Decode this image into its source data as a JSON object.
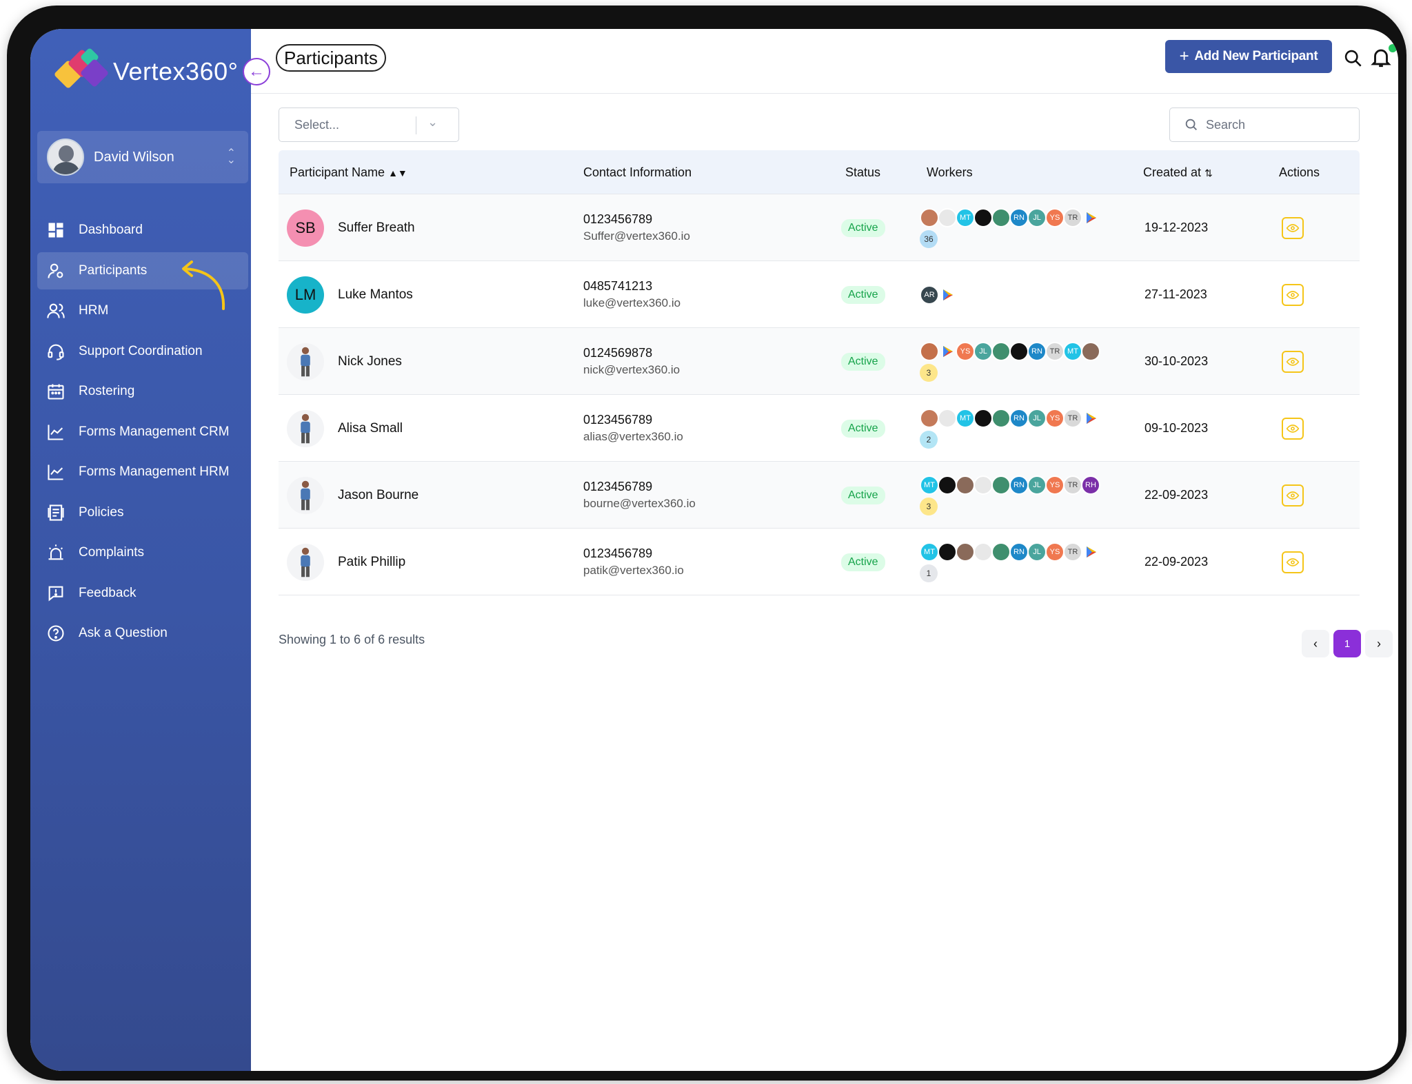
{
  "brand": {
    "name": "Vertex360°"
  },
  "user": {
    "name": "David Wilson"
  },
  "nav": [
    {
      "label": "Dashboard",
      "icon": "dashboard-icon"
    },
    {
      "label": "Participants",
      "icon": "participants-icon"
    },
    {
      "label": "HRM",
      "icon": "hrm-icon"
    },
    {
      "label": "Support Coordination",
      "icon": "headset-icon"
    },
    {
      "label": "Rostering",
      "icon": "calendar-icon"
    },
    {
      "label": "Forms Management CRM",
      "icon": "chart-icon"
    },
    {
      "label": "Forms Management HRM",
      "icon": "chart-icon"
    },
    {
      "label": "Policies",
      "icon": "document-icon"
    },
    {
      "label": "Complaints",
      "icon": "alarm-icon"
    },
    {
      "label": "Feedback",
      "icon": "message-icon"
    },
    {
      "label": "Ask a Question",
      "icon": "help-icon"
    }
  ],
  "header": {
    "title": "Participants",
    "add_button": "Add New Participant",
    "add_icon": "+"
  },
  "filters": {
    "select_placeholder": "Select...",
    "search_placeholder": "Search"
  },
  "table": {
    "columns": {
      "name": "Participant Name",
      "contact": "Contact Information",
      "status": "Status",
      "workers": "Workers",
      "created": "Created at",
      "actions": "Actions"
    },
    "rows": [
      {
        "initials": "SB",
        "avatar_color": "#f48fb1",
        "name": "Suffer Breath",
        "phone": "0123456789",
        "email": "Suffer@vertex360.io",
        "status": "Active",
        "worker_count": "36",
        "count_color": "#b3dcf5",
        "created": "19-12-2023",
        "workers": [
          [
            "",
            "#c47a5a"
          ],
          [
            "",
            "#e8e8e8"
          ],
          [
            "MT",
            "#22c3e6"
          ],
          [
            "",
            "#111111"
          ],
          [
            "",
            "#3f8f6e"
          ],
          [
            "RN",
            "#1e88c8"
          ],
          [
            "JL",
            "#4aa59d"
          ],
          [
            "YS",
            "#f07850"
          ],
          [
            "TR",
            "#d9d9d9"
          ],
          [
            "play",
            "play"
          ]
        ]
      },
      {
        "initials": "LM",
        "avatar_color": "#17b3c9",
        "name": "Luke Mantos",
        "phone": "0485741213",
        "email": "luke@vertex360.io",
        "status": "Active",
        "worker_count": "",
        "count_color": "",
        "created": "27-11-2023",
        "workers": [
          [
            "AR",
            "#37474f"
          ],
          [
            "play",
            "play"
          ]
        ]
      },
      {
        "initials": "",
        "avatar_color": "#f3f4f6",
        "name": "Nick Jones",
        "phone": "0124569878",
        "email": "nick@vertex360.io",
        "status": "Active",
        "worker_count": "3",
        "count_color": "#fde68a",
        "created": "30-10-2023",
        "workers": [
          [
            "",
            "#c4704a"
          ],
          [
            "play",
            "play"
          ],
          [
            "YS",
            "#f07850"
          ],
          [
            "JL",
            "#4aa59d"
          ],
          [
            "",
            "#3f8f6e"
          ],
          [
            "",
            "#111111"
          ],
          [
            "RN",
            "#1e88c8"
          ],
          [
            "TR",
            "#d9d9d9"
          ],
          [
            "MT",
            "#22c3e6"
          ],
          [
            "",
            "#8a6a5a"
          ]
        ]
      },
      {
        "initials": "",
        "avatar_color": "#f3f4f6",
        "name": "Alisa Small",
        "phone": "0123456789",
        "email": "alias@vertex360.io",
        "status": "Active",
        "worker_count": "2",
        "count_color": "#b3e5f5",
        "created": "09-10-2023",
        "workers": [
          [
            "",
            "#c47a5a"
          ],
          [
            "",
            "#e8e8e8"
          ],
          [
            "MT",
            "#22c3e6"
          ],
          [
            "",
            "#111111"
          ],
          [
            "",
            "#3f8f6e"
          ],
          [
            "RN",
            "#1e88c8"
          ],
          [
            "JL",
            "#4aa59d"
          ],
          [
            "YS",
            "#f07850"
          ],
          [
            "TR",
            "#d9d9d9"
          ],
          [
            "play",
            "play"
          ]
        ]
      },
      {
        "initials": "",
        "avatar_color": "#f3f4f6",
        "name": "Jason Bourne",
        "phone": "0123456789",
        "email": "bourne@vertex360.io",
        "status": "Active",
        "worker_count": "3",
        "count_color": "#fde68a",
        "created": "22-09-2023",
        "workers": [
          [
            "MT",
            "#22c3e6"
          ],
          [
            "",
            "#111111"
          ],
          [
            "",
            "#8a6a5a"
          ],
          [
            "",
            "#e8e8e8"
          ],
          [
            "",
            "#3f8f6e"
          ],
          [
            "RN",
            "#1e88c8"
          ],
          [
            "JL",
            "#4aa59d"
          ],
          [
            "YS",
            "#f07850"
          ],
          [
            "TR",
            "#d9d9d9"
          ],
          [
            "RH",
            "#7b2fa8"
          ]
        ]
      },
      {
        "initials": "",
        "avatar_color": "#f3f4f6",
        "name": "Patik Phillip",
        "phone": "0123456789",
        "email": "patik@vertex360.io",
        "status": "Active",
        "worker_count": "1",
        "count_color": "#e5e7eb",
        "created": "22-09-2023",
        "workers": [
          [
            "MT",
            "#22c3e6"
          ],
          [
            "",
            "#111111"
          ],
          [
            "",
            "#8a6a5a"
          ],
          [
            "",
            "#e8e8e8"
          ],
          [
            "",
            "#3f8f6e"
          ],
          [
            "RN",
            "#1e88c8"
          ],
          [
            "JL",
            "#4aa59d"
          ],
          [
            "YS",
            "#f07850"
          ],
          [
            "TR",
            "#d9d9d9"
          ],
          [
            "play",
            "play"
          ]
        ]
      }
    ]
  },
  "footer": {
    "results_text": "Showing 1 to 6 of 6 results",
    "prev": "‹",
    "page": "1",
    "next": "›"
  },
  "colors": {
    "sidebar": "#3a56a6",
    "accent": "#8b2fd9",
    "active_status": "#16a34a",
    "action_icon": "#f5c518"
  }
}
